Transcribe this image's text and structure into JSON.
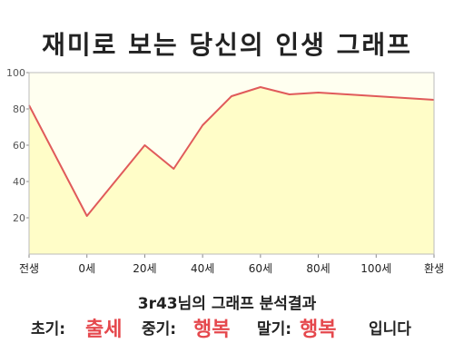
{
  "title": "재미로 보는 당신의 인생 그래프",
  "summary": {
    "heading": "3r43님의 그래프 분석결과",
    "early_label": "초기:",
    "early_value": "출세",
    "mid_label": "중기:",
    "mid_value": "행복",
    "late_label": "말기:",
    "late_value": "행복",
    "ending": "입니다"
  },
  "colors": {
    "line": "#e05a5a",
    "fill": "#fffdc8",
    "plot_bg": "#fffff0",
    "highlight": "#e5484d"
  },
  "chart_data": {
    "type": "area",
    "title": "재미로 보는 당신의 인생 그래프",
    "x_tick_labels": [
      "전생",
      "0세",
      "20세",
      "40세",
      "60세",
      "80세",
      "100세",
      "환생"
    ],
    "y_ticks": [
      20,
      40,
      60,
      80,
      100
    ],
    "ylim": [
      0,
      100
    ],
    "xlabel": "",
    "ylabel": "",
    "grid": false,
    "series": [
      {
        "x": [
          -20,
          0,
          20,
          30,
          40,
          50,
          60,
          70,
          80,
          90,
          100,
          110,
          120
        ],
        "values": [
          82,
          21,
          60,
          47,
          71,
          87,
          92,
          88,
          89,
          88,
          87,
          86,
          85
        ]
      }
    ],
    "xlim": [
      -20,
      120
    ]
  }
}
